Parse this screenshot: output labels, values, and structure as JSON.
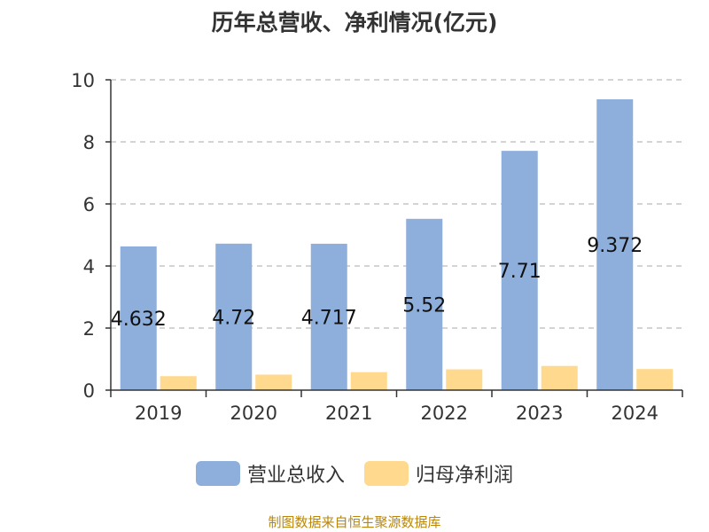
{
  "title": "历年总营收、净利情况(亿元)",
  "footer": "制图数据来自恒生聚源数据库",
  "colors": {
    "revenue": "#8EAEDB",
    "profit": "#FFD98E",
    "grid": "#bbbbbb",
    "axis": "#333333"
  },
  "chart_data": {
    "type": "bar",
    "title": "历年总营收、净利情况(亿元)",
    "categories": [
      "2019",
      "2020",
      "2021",
      "2022",
      "2023",
      "2024"
    ],
    "ylim": [
      0,
      10
    ],
    "yticks": [
      0,
      2,
      4,
      6,
      8,
      10
    ],
    "grid": true,
    "legend_placement": "bottom",
    "series": [
      {
        "name": "营业总收入",
        "values": [
          4.632,
          4.72,
          4.717,
          5.52,
          7.71,
          9.372
        ],
        "labels": [
          "4.632",
          "4.72",
          "4.717",
          "5.52",
          "7.71",
          "9.372"
        ]
      },
      {
        "name": "归母净利润",
        "values": [
          0.45,
          0.5,
          0.58,
          0.67,
          0.78,
          0.68
        ]
      }
    ]
  }
}
